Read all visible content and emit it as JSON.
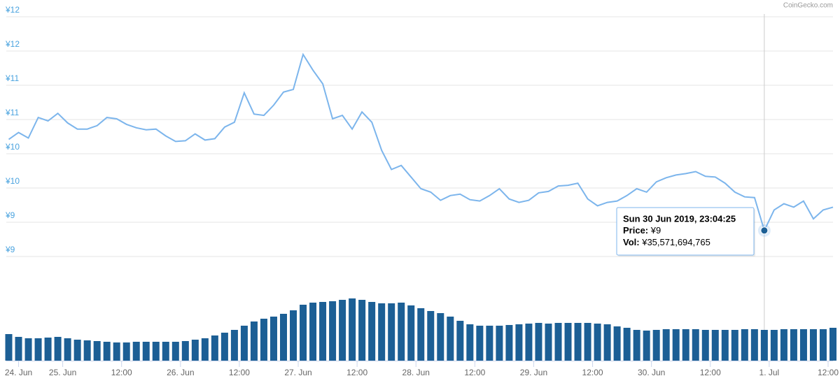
{
  "chart_data": [
    {
      "type": "line",
      "credit": "CoinGecko.com",
      "xlim": [
        12.5,
        181
      ],
      "ylim": [
        8.5,
        12
      ],
      "grid": true,
      "color": "#7cb5ec",
      "yticks": [
        {
          "value": 12,
          "label": "¥12"
        },
        {
          "value": 11.5,
          "label": "¥12"
        },
        {
          "value": 11,
          "label": "¥11"
        },
        {
          "value": 10.5,
          "label": "¥11"
        },
        {
          "value": 10,
          "label": "¥10"
        },
        {
          "value": 9.5,
          "label": "¥10"
        },
        {
          "value": 9,
          "label": "¥9"
        },
        {
          "value": 8.5,
          "label": "¥9"
        }
      ],
      "x": [
        13,
        15,
        17,
        19,
        21,
        23,
        25,
        27,
        29,
        31,
        33,
        35,
        37,
        39,
        41,
        43,
        45,
        47,
        49,
        51,
        53,
        55,
        57,
        59,
        61,
        63,
        65,
        67,
        69,
        71,
        73,
        75,
        77,
        79,
        81,
        83,
        85,
        87,
        89,
        91,
        93,
        95,
        97,
        99,
        101,
        103,
        105,
        107,
        109,
        111,
        113,
        115,
        117,
        119,
        121,
        123,
        125,
        127,
        129,
        131,
        133,
        135,
        137,
        139,
        141,
        143,
        145,
        147,
        149,
        151,
        153,
        155,
        157,
        159,
        161,
        163,
        165,
        167,
        169,
        171,
        173,
        175,
        177,
        179,
        181
      ],
      "series": [
        {
          "color": "#7cb5ec",
          "values": [
            10.21,
            10.31,
            10.23,
            10.53,
            10.48,
            10.59,
            10.45,
            10.36,
            10.36,
            10.41,
            10.53,
            10.51,
            10.43,
            10.38,
            10.35,
            10.36,
            10.26,
            10.18,
            10.19,
            10.29,
            10.2,
            10.22,
            10.39,
            10.46,
            10.89,
            10.58,
            10.56,
            10.71,
            10.9,
            10.94,
            11.45,
            11.22,
            11.02,
            10.51,
            10.56,
            10.36,
            10.61,
            10.46,
            10.05,
            9.77,
            9.83,
            9.66,
            9.49,
            9.44,
            9.32,
            9.39,
            9.41,
            9.33,
            9.31,
            9.39,
            9.49,
            9.34,
            9.29,
            9.32,
            9.43,
            9.45,
            9.53,
            9.54,
            9.57,
            9.34,
            9.24,
            9.29,
            9.31,
            9.39,
            9.49,
            9.44,
            9.59,
            9.65,
            9.69,
            9.71,
            9.74,
            9.67,
            9.66,
            9.57,
            9.44,
            9.37,
            9.36,
            8.88,
            9.18,
            9.27,
            9.22,
            9.31,
            9.05,
            9.18,
            9.22
          ]
        }
      ],
      "tooltip": {
        "hover_x": 167,
        "title": "Sun 30 Jun 2019, 23:04:25",
        "price_label": "Price:",
        "price": "¥9",
        "vol_label": "Vol:",
        "vol": "¥35,571,694,765"
      }
    },
    {
      "type": "bar",
      "color": "#1c5f95",
      "xlim": [
        12.5,
        181
      ],
      "xticks": [
        {
          "value": 15,
          "label": "24. Jun"
        },
        {
          "value": 24,
          "label": "25. Jun"
        },
        {
          "value": 36,
          "label": "12:00"
        },
        {
          "value": 48,
          "label": "26. Jun"
        },
        {
          "value": 60,
          "label": "12:00"
        },
        {
          "value": 72,
          "label": "27. Jun"
        },
        {
          "value": 84,
          "label": "12:00"
        },
        {
          "value": 96,
          "label": "28. Jun"
        },
        {
          "value": 108,
          "label": "12:00"
        },
        {
          "value": 120,
          "label": "29. Jun"
        },
        {
          "value": 132,
          "label": "12:00"
        },
        {
          "value": 144,
          "label": "30. Jun"
        },
        {
          "value": 156,
          "label": "12:00"
        },
        {
          "value": 168,
          "label": "1. Jul"
        },
        {
          "value": 180,
          "label": "12:00"
        }
      ],
      "x": [
        13,
        15,
        17,
        19,
        21,
        23,
        25,
        27,
        29,
        31,
        33,
        35,
        37,
        39,
        41,
        43,
        45,
        47,
        49,
        51,
        53,
        55,
        57,
        59,
        61,
        63,
        65,
        67,
        69,
        71,
        73,
        75,
        77,
        79,
        81,
        83,
        85,
        87,
        89,
        91,
        93,
        95,
        97,
        99,
        101,
        103,
        105,
        107,
        109,
        111,
        113,
        115,
        117,
        119,
        121,
        123,
        125,
        127,
        129,
        131,
        133,
        135,
        137,
        139,
        141,
        143,
        145,
        147,
        149,
        151,
        153,
        155,
        157,
        159,
        161,
        163,
        165,
        167,
        169,
        171,
        173,
        175,
        177,
        179,
        181
      ],
      "values": [
        30400000000.0,
        27200000000.0,
        25600000000.0,
        25600000000.0,
        26400000000.0,
        27200000000.0,
        25600000000.0,
        24000000000.0,
        23200000000.0,
        22400000000.0,
        21600000000.0,
        20800000000.0,
        20800000000.0,
        21600000000.0,
        21600000000.0,
        21600000000.0,
        21600000000.0,
        21600000000.0,
        22400000000.0,
        24000000000.0,
        25600000000.0,
        28800000000.0,
        32000000000.0,
        35200000000.0,
        40000000000.0,
        44800000000.0,
        48000000000.0,
        50400000000.0,
        53600000000.0,
        57600000000.0,
        64000000000.0,
        66400000000.0,
        67200000000.0,
        68000000000.0,
        69600000000.0,
        71200000000.0,
        69600000000.0,
        67200000000.0,
        65600000000.0,
        65600000000.0,
        66400000000.0,
        63200000000.0,
        60000000000.0,
        56800000000.0,
        54400000000.0,
        50400000000.0,
        45600000000.0,
        41600000000.0,
        40000000000.0,
        40000000000.0,
        40000000000.0,
        40800000000.0,
        41600000000.0,
        42400000000.0,
        43200000000.0,
        42400000000.0,
        43200000000.0,
        43200000000.0,
        43200000000.0,
        43200000000.0,
        42400000000.0,
        41600000000.0,
        39200000000.0,
        37600000000.0,
        35200000000.0,
        34400000000.0,
        35200000000.0,
        36000000000.0,
        36000000000.0,
        36000000000.0,
        36000000000.0,
        35200000000.0,
        35200000000.0,
        35200000000.0,
        35200000000.0,
        36000000000.0,
        36000000000.0,
        35200000000.0,
        35200000000.0,
        36000000000.0,
        36000000000.0,
        36000000000.0,
        36000000000.0,
        36000000000.0,
        37600000000.0
      ]
    }
  ]
}
